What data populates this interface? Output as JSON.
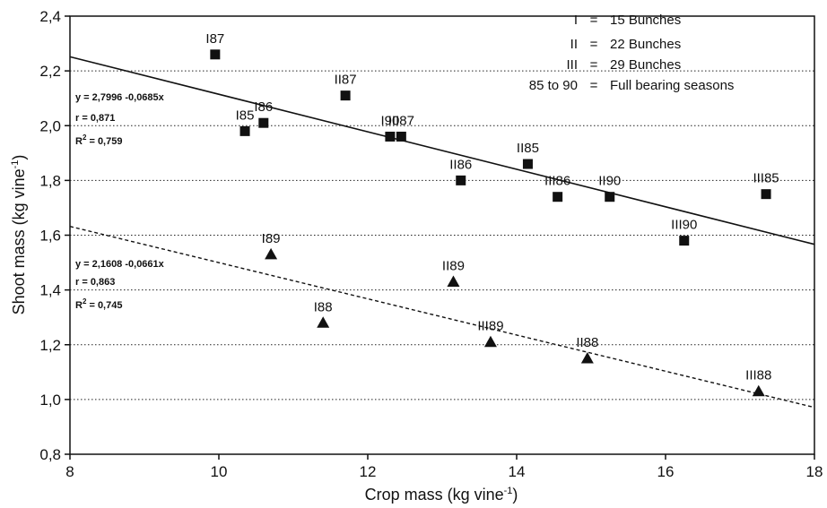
{
  "chart_data": {
    "type": "scatter",
    "xlabel": "Crop mass (kg vine",
    "xlabel_sup": "-1",
    "xlabel_end": ")",
    "ylabel": "Shoot mass (kg vine",
    "ylabel_sup": "-1",
    "ylabel_end": ")",
    "xlim": [
      8,
      18
    ],
    "ylim": [
      0.8,
      2.4
    ],
    "xticks": [
      8,
      10,
      12,
      14,
      16,
      18
    ],
    "xtick_labels": [
      "8",
      "10",
      "12",
      "14",
      "16",
      "18"
    ],
    "yticks": [
      0.8,
      1.0,
      1.2,
      1.4,
      1.6,
      1.8,
      2.0,
      2.2,
      2.4
    ],
    "ytick_labels": [
      "0,8",
      "1,0",
      "1,2",
      "1,4",
      "1,6",
      "1,8",
      "2,0",
      "2,2",
      "2,4"
    ],
    "grid": "horizontal dotted",
    "series": [
      {
        "marker": "square",
        "points": [
          {
            "x": 9.95,
            "y": 2.26,
            "label": "I87"
          },
          {
            "x": 10.35,
            "y": 1.98,
            "label": "I85"
          },
          {
            "x": 10.6,
            "y": 2.01,
            "label": "I86"
          },
          {
            "x": 11.7,
            "y": 2.11,
            "label": "II87"
          },
          {
            "x": 12.3,
            "y": 1.96,
            "label": "I90"
          },
          {
            "x": 12.45,
            "y": 1.96,
            "label": "III87"
          },
          {
            "x": 13.25,
            "y": 1.8,
            "label": "II86"
          },
          {
            "x": 14.15,
            "y": 1.86,
            "label": "II85"
          },
          {
            "x": 14.55,
            "y": 1.74,
            "label": "III86"
          },
          {
            "x": 15.25,
            "y": 1.74,
            "label": "II90"
          },
          {
            "x": 16.25,
            "y": 1.58,
            "label": "III90"
          },
          {
            "x": 17.35,
            "y": 1.75,
            "label": "III85"
          }
        ],
        "fit": {
          "intercept": 2.7996,
          "slope": -0.0685,
          "style": "solid"
        },
        "equation": "y = 2,7996 -0,0685x",
        "r": "r = 0,871",
        "r2_prefix": "R",
        "r2_sup": "2",
        "r2_value": " = 0,759"
      },
      {
        "marker": "triangle",
        "points": [
          {
            "x": 10.7,
            "y": 1.53,
            "label": "I89"
          },
          {
            "x": 11.4,
            "y": 1.28,
            "label": "I88"
          },
          {
            "x": 13.15,
            "y": 1.43,
            "label": "II89"
          },
          {
            "x": 13.65,
            "y": 1.21,
            "label": "III89"
          },
          {
            "x": 14.95,
            "y": 1.15,
            "label": "II88"
          },
          {
            "x": 17.25,
            "y": 1.03,
            "label": "III88"
          }
        ],
        "fit": {
          "intercept": 2.1608,
          "slope": -0.0661,
          "style": "dashed"
        },
        "equation": "y = 2,1608 -0,0661x",
        "r": "r = 0,863",
        "r2_prefix": "R",
        "r2_sup": "2",
        "r2_value": " = 0,745"
      }
    ],
    "legend": {
      "position": "top-right",
      "entries": [
        {
          "key": "I",
          "eq": "=",
          "text": "15 Bunches"
        },
        {
          "key": "II",
          "eq": "=",
          "text": "22 Bunches"
        },
        {
          "key": "III",
          "eq": "=",
          "text": "29 Bunches"
        },
        {
          "key": "85 to 90",
          "eq": "=",
          "text": "Full bearing seasons"
        }
      ]
    }
  }
}
